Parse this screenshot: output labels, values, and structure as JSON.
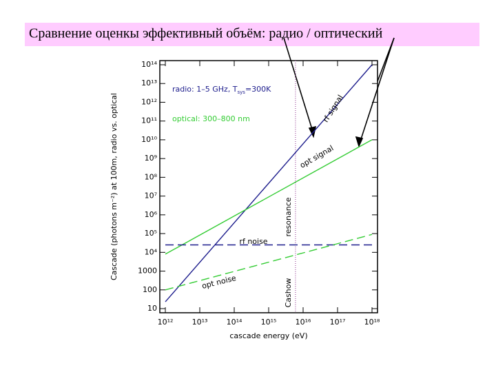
{
  "slide_title": "Сравнение оценкы эффективный объём: радио / оптический",
  "chart_data": {
    "type": "line",
    "x_label": "cascade energy (eV)",
    "y_label": "Cascade (photons m⁻²) at 100m,   radio vs. optical",
    "log_x": true,
    "log_y": true,
    "xlim": [
      1000000000000.0,
      1e+18
    ],
    "xticks": [
      {
        "value": 1000000000000.0,
        "label": "10¹²"
      },
      {
        "value": 10000000000000.0,
        "label": "10¹³"
      },
      {
        "value": 100000000000000.0,
        "label": "10¹⁴"
      },
      {
        "value": 1000000000000000.0,
        "label": "10¹⁵"
      },
      {
        "value": 1e+16,
        "label": "10¹⁶"
      },
      {
        "value": 1e+17,
        "label": "10¹⁷"
      },
      {
        "value": 1e+18,
        "label": "10¹⁸"
      }
    ],
    "ylim": [
      10,
      100000000000000.0
    ],
    "yticks": [
      10,
      100,
      1000,
      {
        "value": 10000.0,
        "label": "10⁴"
      },
      {
        "value": 100000.0,
        "label": "10⁵"
      },
      {
        "value": 1000000.0,
        "label": "10⁶"
      },
      {
        "value": 10000000.0,
        "label": "10⁷"
      },
      {
        "value": 100000000.0,
        "label": "10⁸"
      },
      {
        "value": 1000000000.0,
        "label": "10⁹"
      },
      {
        "value": 10000000000.0,
        "label": "10¹⁰"
      },
      {
        "value": 100000000000.0,
        "label": "10¹¹"
      },
      {
        "value": 1000000000000.0,
        "label": "10¹²"
      },
      {
        "value": 10000000000000.0,
        "label": "10¹³"
      },
      {
        "value": 100000000000000.0,
        "label": "10¹⁴"
      }
    ],
    "series": [
      {
        "name": "rf signal",
        "color": "#1c1c8c",
        "dashed": false,
        "x": [
          1000000000000.0,
          1e+18
        ],
        "values": [
          23,
          100000000000000.0
        ]
      },
      {
        "name": "opt signal",
        "color": "#33cc33",
        "dashed": false,
        "x": [
          1000000000000.0,
          1e+18
        ],
        "values": [
          8000,
          10000000000.0
        ]
      },
      {
        "name": "rf noise",
        "color": "#1c1c8c",
        "dashed": true,
        "x": [
          1000000000000.0,
          1e+18
        ],
        "values": [
          25000,
          25000
        ]
      },
      {
        "name": "opt noise",
        "color": "#33cc33",
        "dashed": true,
        "x": [
          1000000000000.0,
          1e+18
        ],
        "values": [
          100,
          90000
        ]
      }
    ],
    "vline": {
      "x": 6000000000000000.0,
      "color": "#a050a0",
      "labels": [
        "resonance",
        "Cashow"
      ]
    },
    "annotations": [
      {
        "parts": [
          "radio: 1–5 GHz, T",
          "sys",
          "=300K"
        ],
        "color": "#1c1c8c"
      },
      {
        "parts": [
          "optical: 300–800 nm"
        ],
        "color": "#33cc33"
      }
    ]
  }
}
